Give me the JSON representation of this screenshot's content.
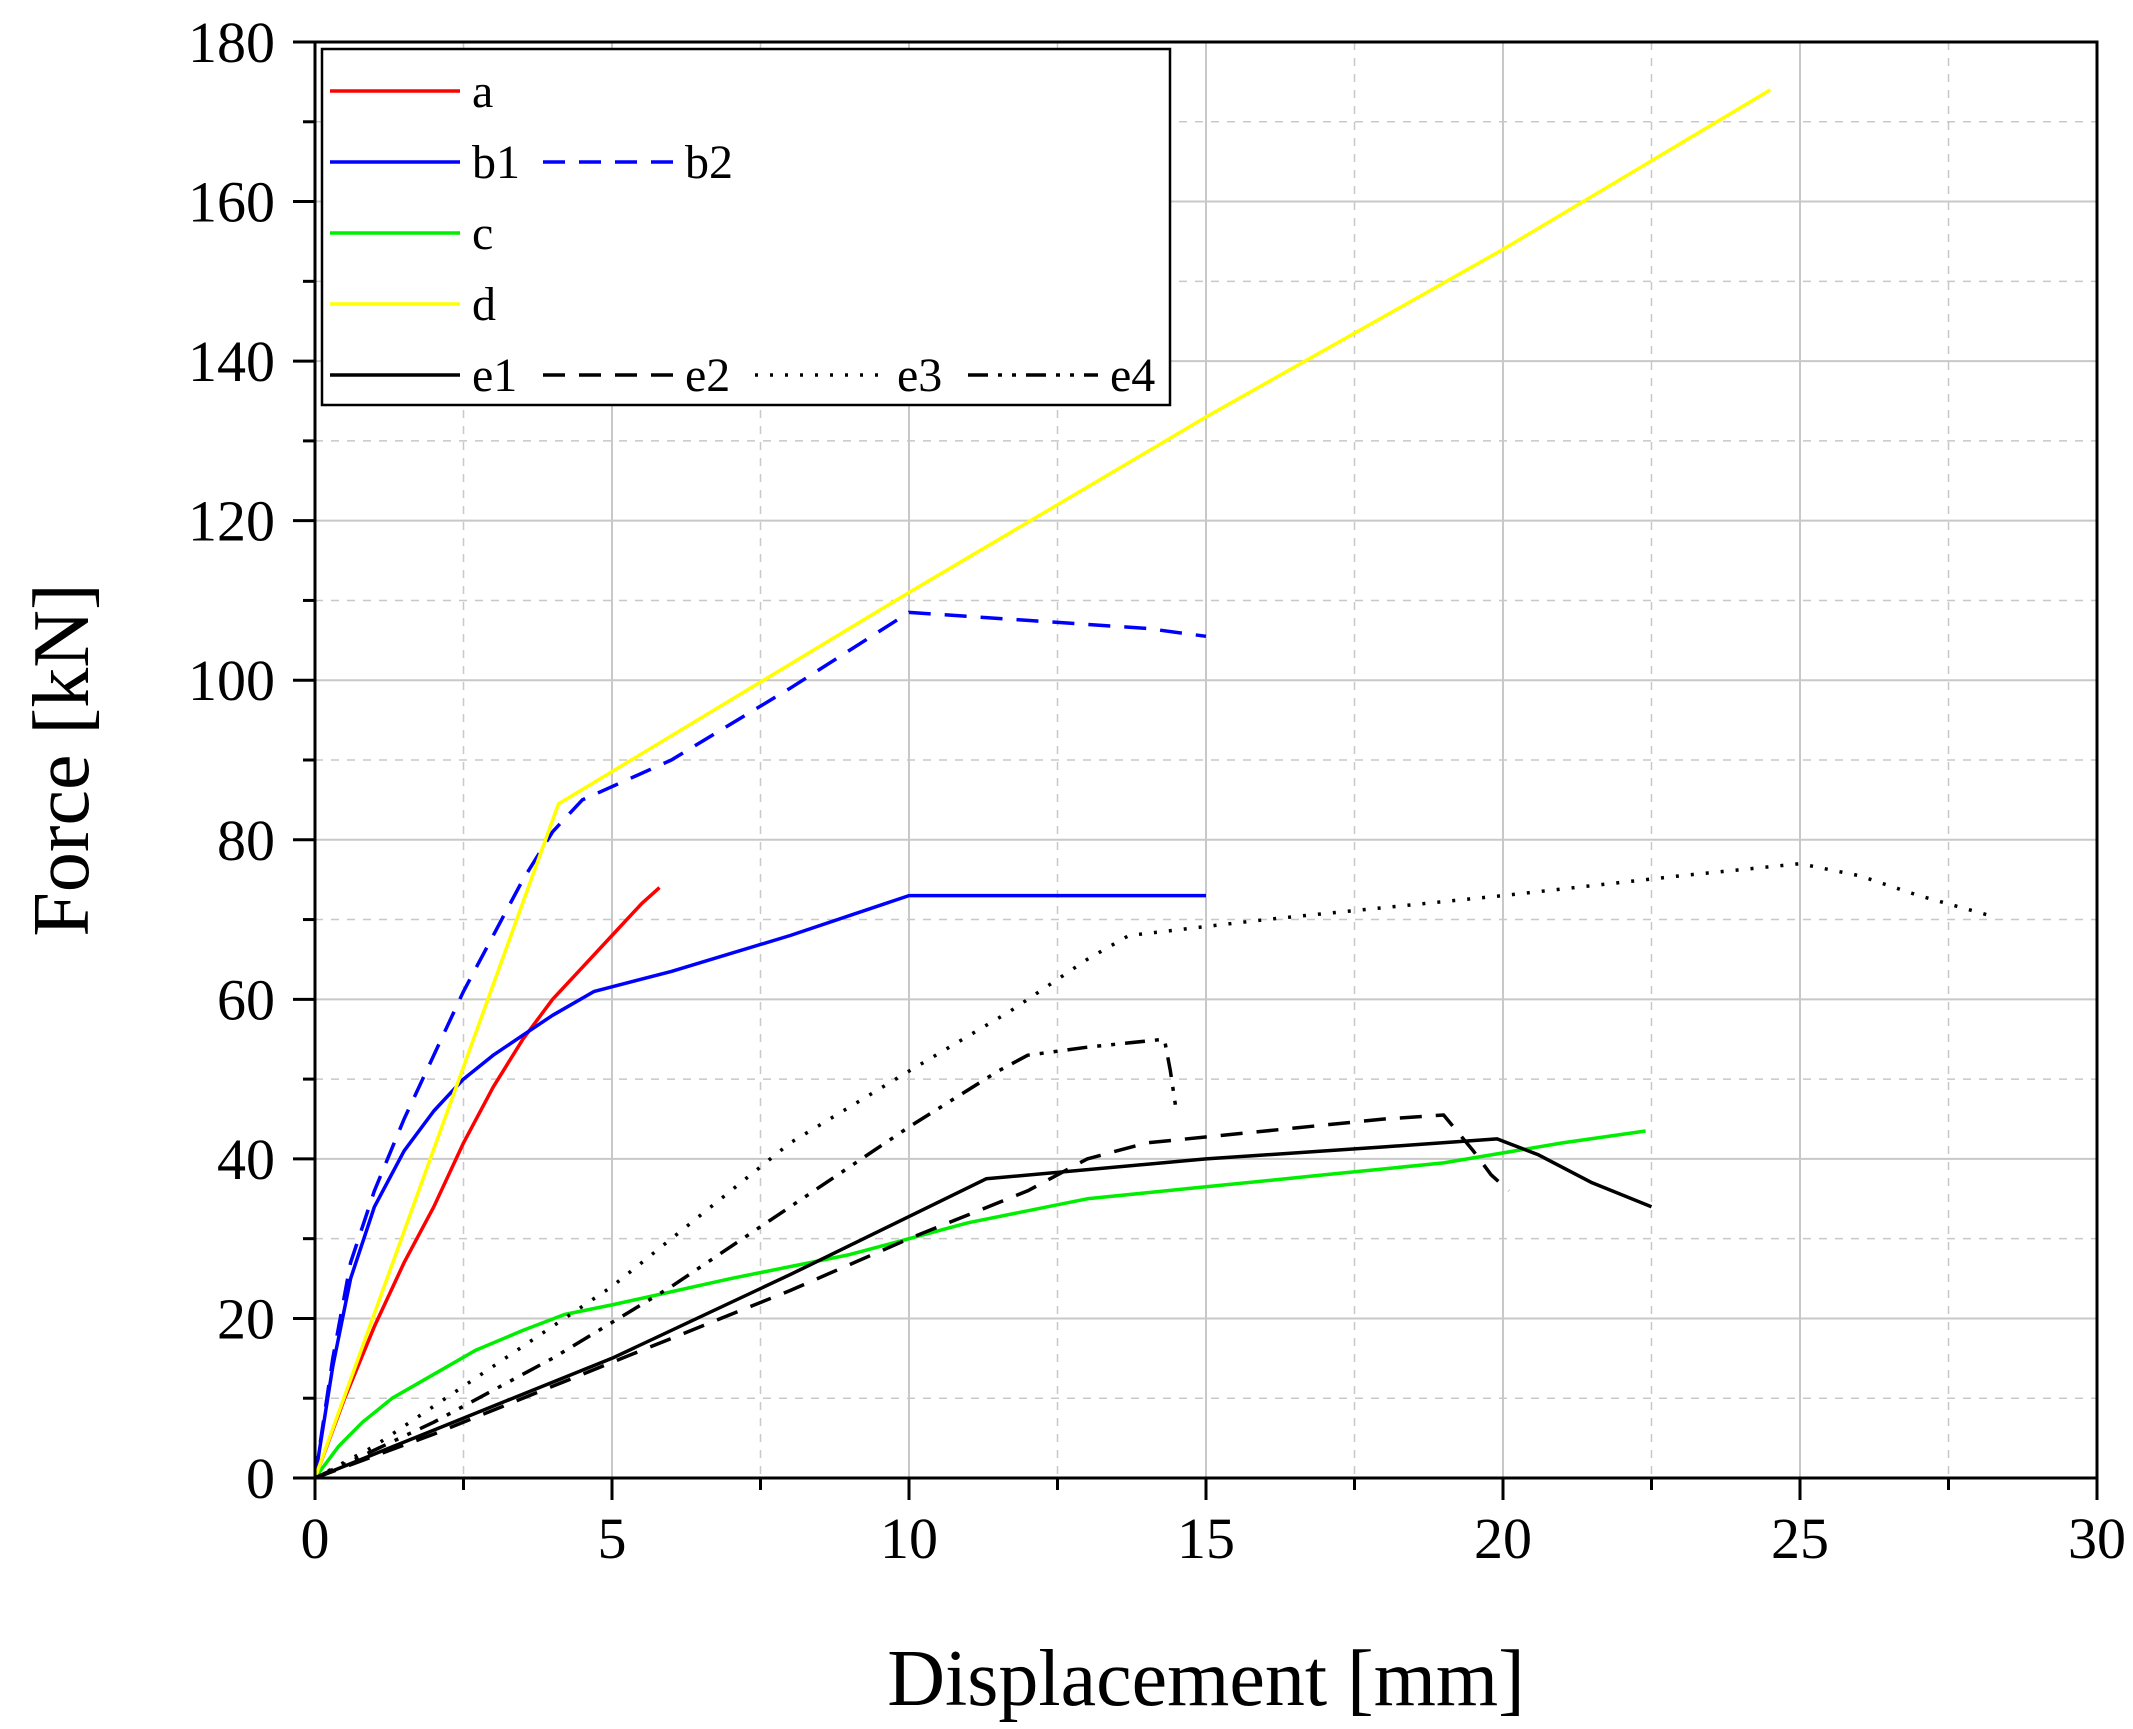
{
  "chart_data": {
    "type": "line",
    "xlabel": "Displacement [mm]",
    "ylabel": "Force [kN]",
    "xlim": [
      0,
      30
    ],
    "ylim": [
      0,
      180
    ],
    "xticks": [
      0,
      5,
      10,
      15,
      20,
      25,
      30
    ],
    "yticks": [
      0,
      20,
      40,
      60,
      80,
      100,
      120,
      140,
      160,
      180
    ],
    "grid": true,
    "legend_position": "top-left",
    "series": [
      {
        "name": "a",
        "color": "#ff0000",
        "dash": "solid",
        "points": [
          [
            0,
            0
          ],
          [
            0.5,
            10
          ],
          [
            1,
            19
          ],
          [
            1.5,
            27
          ],
          [
            2,
            34
          ],
          [
            2.5,
            42
          ],
          [
            3,
            49
          ],
          [
            3.5,
            55
          ],
          [
            4,
            60
          ],
          [
            4.5,
            64
          ],
          [
            5,
            68
          ],
          [
            5.5,
            72
          ],
          [
            5.8,
            74
          ]
        ]
      },
      {
        "name": "b1",
        "color": "#0000ff",
        "dash": "solid",
        "points": [
          [
            0,
            0
          ],
          [
            0.3,
            14
          ],
          [
            0.6,
            25
          ],
          [
            1,
            34
          ],
          [
            1.5,
            41
          ],
          [
            2,
            46
          ],
          [
            2.5,
            50
          ],
          [
            3,
            53
          ],
          [
            3.5,
            55.5
          ],
          [
            4,
            58
          ],
          [
            4.7,
            61
          ],
          [
            6,
            63.5
          ],
          [
            8,
            68
          ],
          [
            10,
            73
          ],
          [
            12.5,
            73
          ],
          [
            15,
            73
          ]
        ]
      },
      {
        "name": "b2",
        "color": "#0000ff",
        "dash": "dashed",
        "points": [
          [
            0,
            0
          ],
          [
            0.3,
            15
          ],
          [
            0.6,
            27
          ],
          [
            1,
            36
          ],
          [
            1.5,
            45
          ],
          [
            2,
            53
          ],
          [
            2.5,
            61
          ],
          [
            3,
            68
          ],
          [
            3.5,
            75
          ],
          [
            4,
            81
          ],
          [
            4.5,
            85
          ],
          [
            6,
            90
          ],
          [
            8,
            99
          ],
          [
            10,
            108.5
          ],
          [
            12,
            107.5
          ],
          [
            14,
            106.5
          ],
          [
            15,
            105.5
          ]
        ]
      },
      {
        "name": "c",
        "color": "#00ee00",
        "dash": "solid",
        "points": [
          [
            0,
            0
          ],
          [
            0.4,
            4
          ],
          [
            0.8,
            7
          ],
          [
            1.3,
            10
          ],
          [
            2,
            13
          ],
          [
            2.7,
            16
          ],
          [
            3.5,
            18.5
          ],
          [
            4.2,
            20.5
          ],
          [
            5,
            21.7
          ],
          [
            7,
            25
          ],
          [
            9,
            28
          ],
          [
            11,
            32
          ],
          [
            13,
            35
          ],
          [
            15,
            36.5
          ],
          [
            17,
            38
          ],
          [
            19,
            39.5
          ],
          [
            21,
            42
          ],
          [
            22.4,
            43.5
          ]
        ]
      },
      {
        "name": "d",
        "color": "#ffff00",
        "dash": "solid",
        "points": [
          [
            0,
            0
          ],
          [
            4.1,
            84.5
          ],
          [
            10,
            111
          ],
          [
            15,
            133
          ],
          [
            20,
            154
          ],
          [
            24.5,
            174
          ]
        ]
      },
      {
        "name": "e1",
        "color": "#000000",
        "dash": "solid",
        "points": [
          [
            0,
            0
          ],
          [
            2,
            6
          ],
          [
            5,
            15
          ],
          [
            8,
            25.5
          ],
          [
            11.3,
            37.5
          ],
          [
            15,
            40
          ],
          [
            18,
            41.5
          ],
          [
            19.9,
            42.5
          ],
          [
            20.6,
            40.5
          ],
          [
            21.5,
            37
          ],
          [
            22.5,
            34
          ]
        ]
      },
      {
        "name": "e2",
        "color": "#000000",
        "dash": "dashed",
        "points": [
          [
            0,
            0
          ],
          [
            2,
            5.5
          ],
          [
            4,
            11.5
          ],
          [
            6,
            17.5
          ],
          [
            8,
            23.5
          ],
          [
            10,
            30
          ],
          [
            12,
            36
          ],
          [
            13,
            40
          ],
          [
            14,
            42
          ],
          [
            16,
            43.5
          ],
          [
            18,
            45
          ],
          [
            19,
            45.5
          ],
          [
            19.5,
            41
          ],
          [
            19.8,
            38
          ],
          [
            20.1,
            36
          ]
        ]
      },
      {
        "name": "e3",
        "color": "#000000",
        "dash": "dotted",
        "points": [
          [
            0,
            0
          ],
          [
            1,
            4
          ],
          [
            2,
            9
          ],
          [
            3,
            14
          ],
          [
            4,
            19
          ],
          [
            5,
            24
          ],
          [
            6,
            30
          ],
          [
            7,
            36
          ],
          [
            8,
            42
          ],
          [
            10,
            51
          ],
          [
            11.7,
            58.5
          ],
          [
            13,
            65
          ],
          [
            13.7,
            68
          ],
          [
            16,
            70
          ],
          [
            20,
            73
          ],
          [
            23,
            75.5
          ],
          [
            25,
            77
          ],
          [
            26,
            75.5
          ],
          [
            27,
            73
          ],
          [
            28.2,
            70.5
          ]
        ]
      },
      {
        "name": "e4",
        "color": "#000000",
        "dash": "dashdotdot",
        "points": [
          [
            0,
            0
          ],
          [
            2,
            7
          ],
          [
            4,
            15
          ],
          [
            6,
            24
          ],
          [
            8,
            34
          ],
          [
            10,
            44
          ],
          [
            11.5,
            51
          ],
          [
            12,
            53
          ],
          [
            13,
            54
          ],
          [
            14.3,
            55
          ],
          [
            14.4,
            51
          ],
          [
            14.5,
            46
          ]
        ]
      }
    ]
  }
}
